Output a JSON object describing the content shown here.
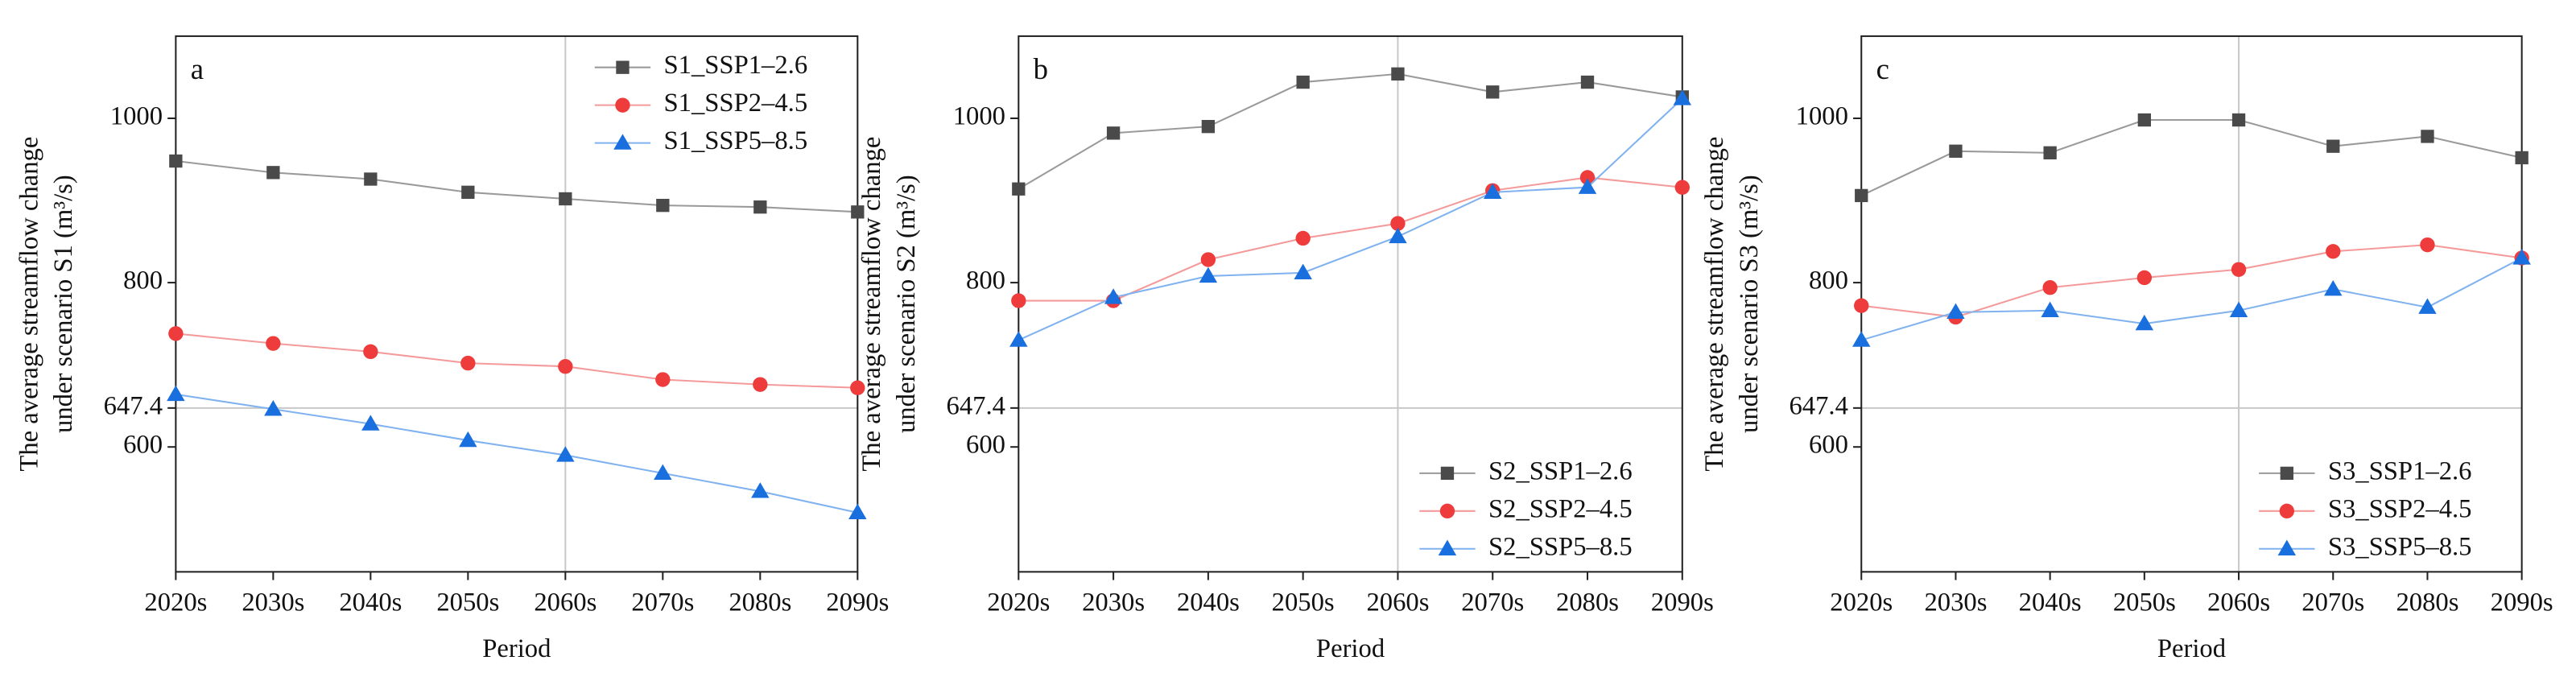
{
  "chart_data": [
    {
      "type": "line",
      "panel": "a",
      "x_label": "Period",
      "y_label": [
        "The average streamflow change",
        "under scenario S1 (m³/s)"
      ],
      "categories": [
        "2020s",
        "2030s",
        "2040s",
        "2050s",
        "2060s",
        "2070s",
        "2080s",
        "2090s"
      ],
      "ylim": [
        448,
        1100
      ],
      "yticks": [
        600,
        647.4,
        800,
        1000
      ],
      "hline": 647.4,
      "vline": "2060s",
      "legend": "upper right",
      "series": [
        {
          "name": "S1_SSP1–2.6",
          "color": "#4a4a4a",
          "line_color": "#9a9a9a",
          "marker": "square",
          "values": [
            948,
            934,
            926,
            910,
            902,
            894,
            892,
            886
          ]
        },
        {
          "name": "S1_SSP2–4.5",
          "color": "#ee3b3b",
          "line_color": "#f49a9a",
          "marker": "circle",
          "values": [
            738,
            726,
            716,
            702,
            698,
            682,
            676,
            672
          ]
        },
        {
          "name": "S1_SSP5–8.5",
          "color": "#1a6fdf",
          "line_color": "#7fb2ef",
          "marker": "triangle",
          "values": [
            664,
            646,
            628,
            608,
            590,
            568,
            546,
            520
          ]
        }
      ]
    },
    {
      "type": "line",
      "panel": "b",
      "x_label": "Period",
      "y_label": [
        "The average streamflow change",
        "under scenario S2 (m³/s)"
      ],
      "categories": [
        "2020s",
        "2030s",
        "2040s",
        "2050s",
        "2060s",
        "2070s",
        "2080s",
        "2090s"
      ],
      "ylim": [
        448,
        1100
      ],
      "yticks": [
        600,
        647.4,
        800,
        1000
      ],
      "hline": 647.4,
      "vline": "2060s",
      "legend": "lower right",
      "series": [
        {
          "name": "S2_SSP1–2.6",
          "color": "#4a4a4a",
          "line_color": "#9a9a9a",
          "marker": "square",
          "values": [
            914,
            982,
            990,
            1044,
            1054,
            1032,
            1044,
            1026
          ]
        },
        {
          "name": "S2_SSP2–4.5",
          "color": "#ee3b3b",
          "line_color": "#f49a9a",
          "marker": "circle",
          "values": [
            778,
            778,
            828,
            854,
            872,
            912,
            928,
            916
          ]
        },
        {
          "name": "S2_SSP5–8.5",
          "color": "#1a6fdf",
          "line_color": "#7fb2ef",
          "marker": "triangle",
          "values": [
            730,
            782,
            808,
            812,
            856,
            910,
            916,
            1024
          ]
        }
      ]
    },
    {
      "type": "line",
      "panel": "c",
      "x_label": "Period",
      "y_label": [
        "The average streamflow change",
        "under scenario S3 (m³/s)"
      ],
      "categories": [
        "2020s",
        "2030s",
        "2040s",
        "2050s",
        "2060s",
        "2070s",
        "2080s",
        "2090s"
      ],
      "ylim": [
        448,
        1100
      ],
      "yticks": [
        600,
        647.4,
        800,
        1000
      ],
      "hline": 647.4,
      "vline": "2060s",
      "legend": "lower right",
      "series": [
        {
          "name": "S3_SSP1–2.6",
          "color": "#4a4a4a",
          "line_color": "#9a9a9a",
          "marker": "square",
          "values": [
            906,
            960,
            958,
            998,
            998,
            966,
            978,
            952
          ]
        },
        {
          "name": "S3_SSP2–4.5",
          "color": "#ee3b3b",
          "line_color": "#f49a9a",
          "marker": "circle",
          "values": [
            772,
            758,
            794,
            806,
            816,
            838,
            846,
            830
          ]
        },
        {
          "name": "S3_SSP5–8.5",
          "color": "#1a6fdf",
          "line_color": "#7fb2ef",
          "marker": "triangle",
          "values": [
            730,
            764,
            766,
            750,
            766,
            792,
            770,
            830
          ]
        }
      ]
    }
  ]
}
